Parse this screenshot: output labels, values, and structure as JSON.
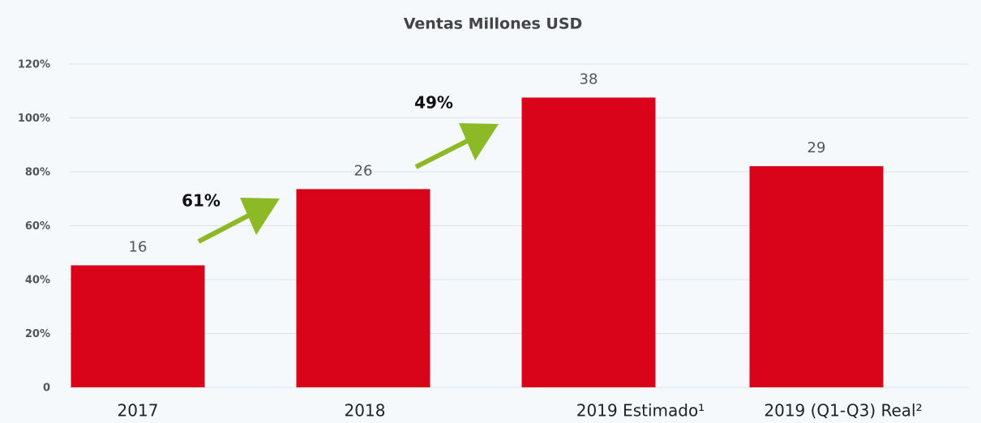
{
  "chart_data": {
    "type": "bar",
    "title": "Ventas Millones USD",
    "categories": [
      "2017",
      "2018",
      "2019 Estimado¹",
      "2019 (Q1-Q3) Real²"
    ],
    "values": [
      16,
      26,
      38,
      29
    ],
    "color": "#d9031a",
    "ylim": [
      0,
      42.4
    ],
    "yticks": [
      0,
      {
        "value": 7.07,
        "label": "20%"
      },
      {
        "value": 14.13,
        "label": "40%"
      },
      {
        "value": 21.2,
        "label": "60%"
      },
      {
        "value": 28.27,
        "label": "80%"
      },
      {
        "value": 35.34,
        "label": "100%"
      },
      {
        "value": 42.4,
        "label": "120%"
      }
    ],
    "grid": true,
    "annotations": [
      "61%",
      "49%"
    ]
  }
}
